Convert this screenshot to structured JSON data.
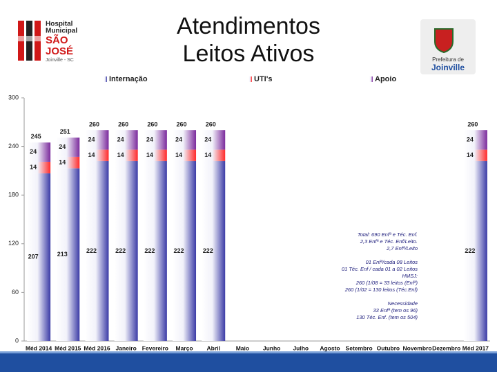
{
  "header": {
    "title_lines": [
      "Atendimentos",
      "Leitos Ativos"
    ],
    "left_logo": [
      "Hospital",
      "Municipal",
      "SÃO",
      "JOSÉ",
      "Joinville - SC"
    ],
    "right_logo": [
      "Prefeitura de",
      "Joinville"
    ]
  },
  "chart_data": {
    "type": "stacked_bar",
    "categories": [
      "Méd 2014",
      "Méd 2015",
      "Méd 2016",
      "Janeiro",
      "Fevereiro",
      "Março",
      "Abril",
      "Maio",
      "Junho",
      "Julho",
      "Agosto",
      "Setembro",
      "Outubro",
      "Novembro",
      "Dezembro",
      "Méd 2017"
    ],
    "series": [
      {
        "name": "Internação",
        "color": "#3b3ba6",
        "values": [
          207,
          213,
          222,
          222,
          222,
          222,
          222,
          null,
          null,
          null,
          null,
          null,
          null,
          null,
          null,
          222
        ]
      },
      {
        "name": "UTI's",
        "color": "#ff2a2a",
        "values": [
          14,
          14,
          14,
          14,
          14,
          14,
          14,
          null,
          null,
          null,
          null,
          null,
          null,
          null,
          null,
          14
        ]
      },
      {
        "name": "Apoio",
        "color": "#7b2a9c",
        "values": [
          24,
          24,
          24,
          24,
          24,
          24,
          24,
          null,
          null,
          null,
          null,
          null,
          null,
          null,
          null,
          24
        ]
      }
    ],
    "totals": [
      245,
      251,
      260,
      260,
      260,
      260,
      260,
      null,
      null,
      null,
      null,
      null,
      null,
      null,
      null,
      260
    ],
    "ylim": [
      0,
      300
    ],
    "yticks": [
      0,
      60,
      120,
      180,
      240,
      300
    ],
    "annotations": [
      [
        "Total: 690 Enfª e Téc. Enf.",
        "2,3 Enfª e Téc. Enf/Leito.",
        "2,7 Enfª/Leito"
      ],
      [
        "01 Enfª/cada 08 Leitos",
        "01 Téc. Enf / cada 01 a 02 Leitos",
        "HMSJ:",
        "260 (1/08 = 33 leitos (Enfª)",
        "260 (1/02 = 130 leitos (Téc.Enf)"
      ],
      [
        "Necessidade",
        "33 Enfª (tem os 96)",
        "130 Téc. Enf. (tem os 504)"
      ]
    ]
  }
}
